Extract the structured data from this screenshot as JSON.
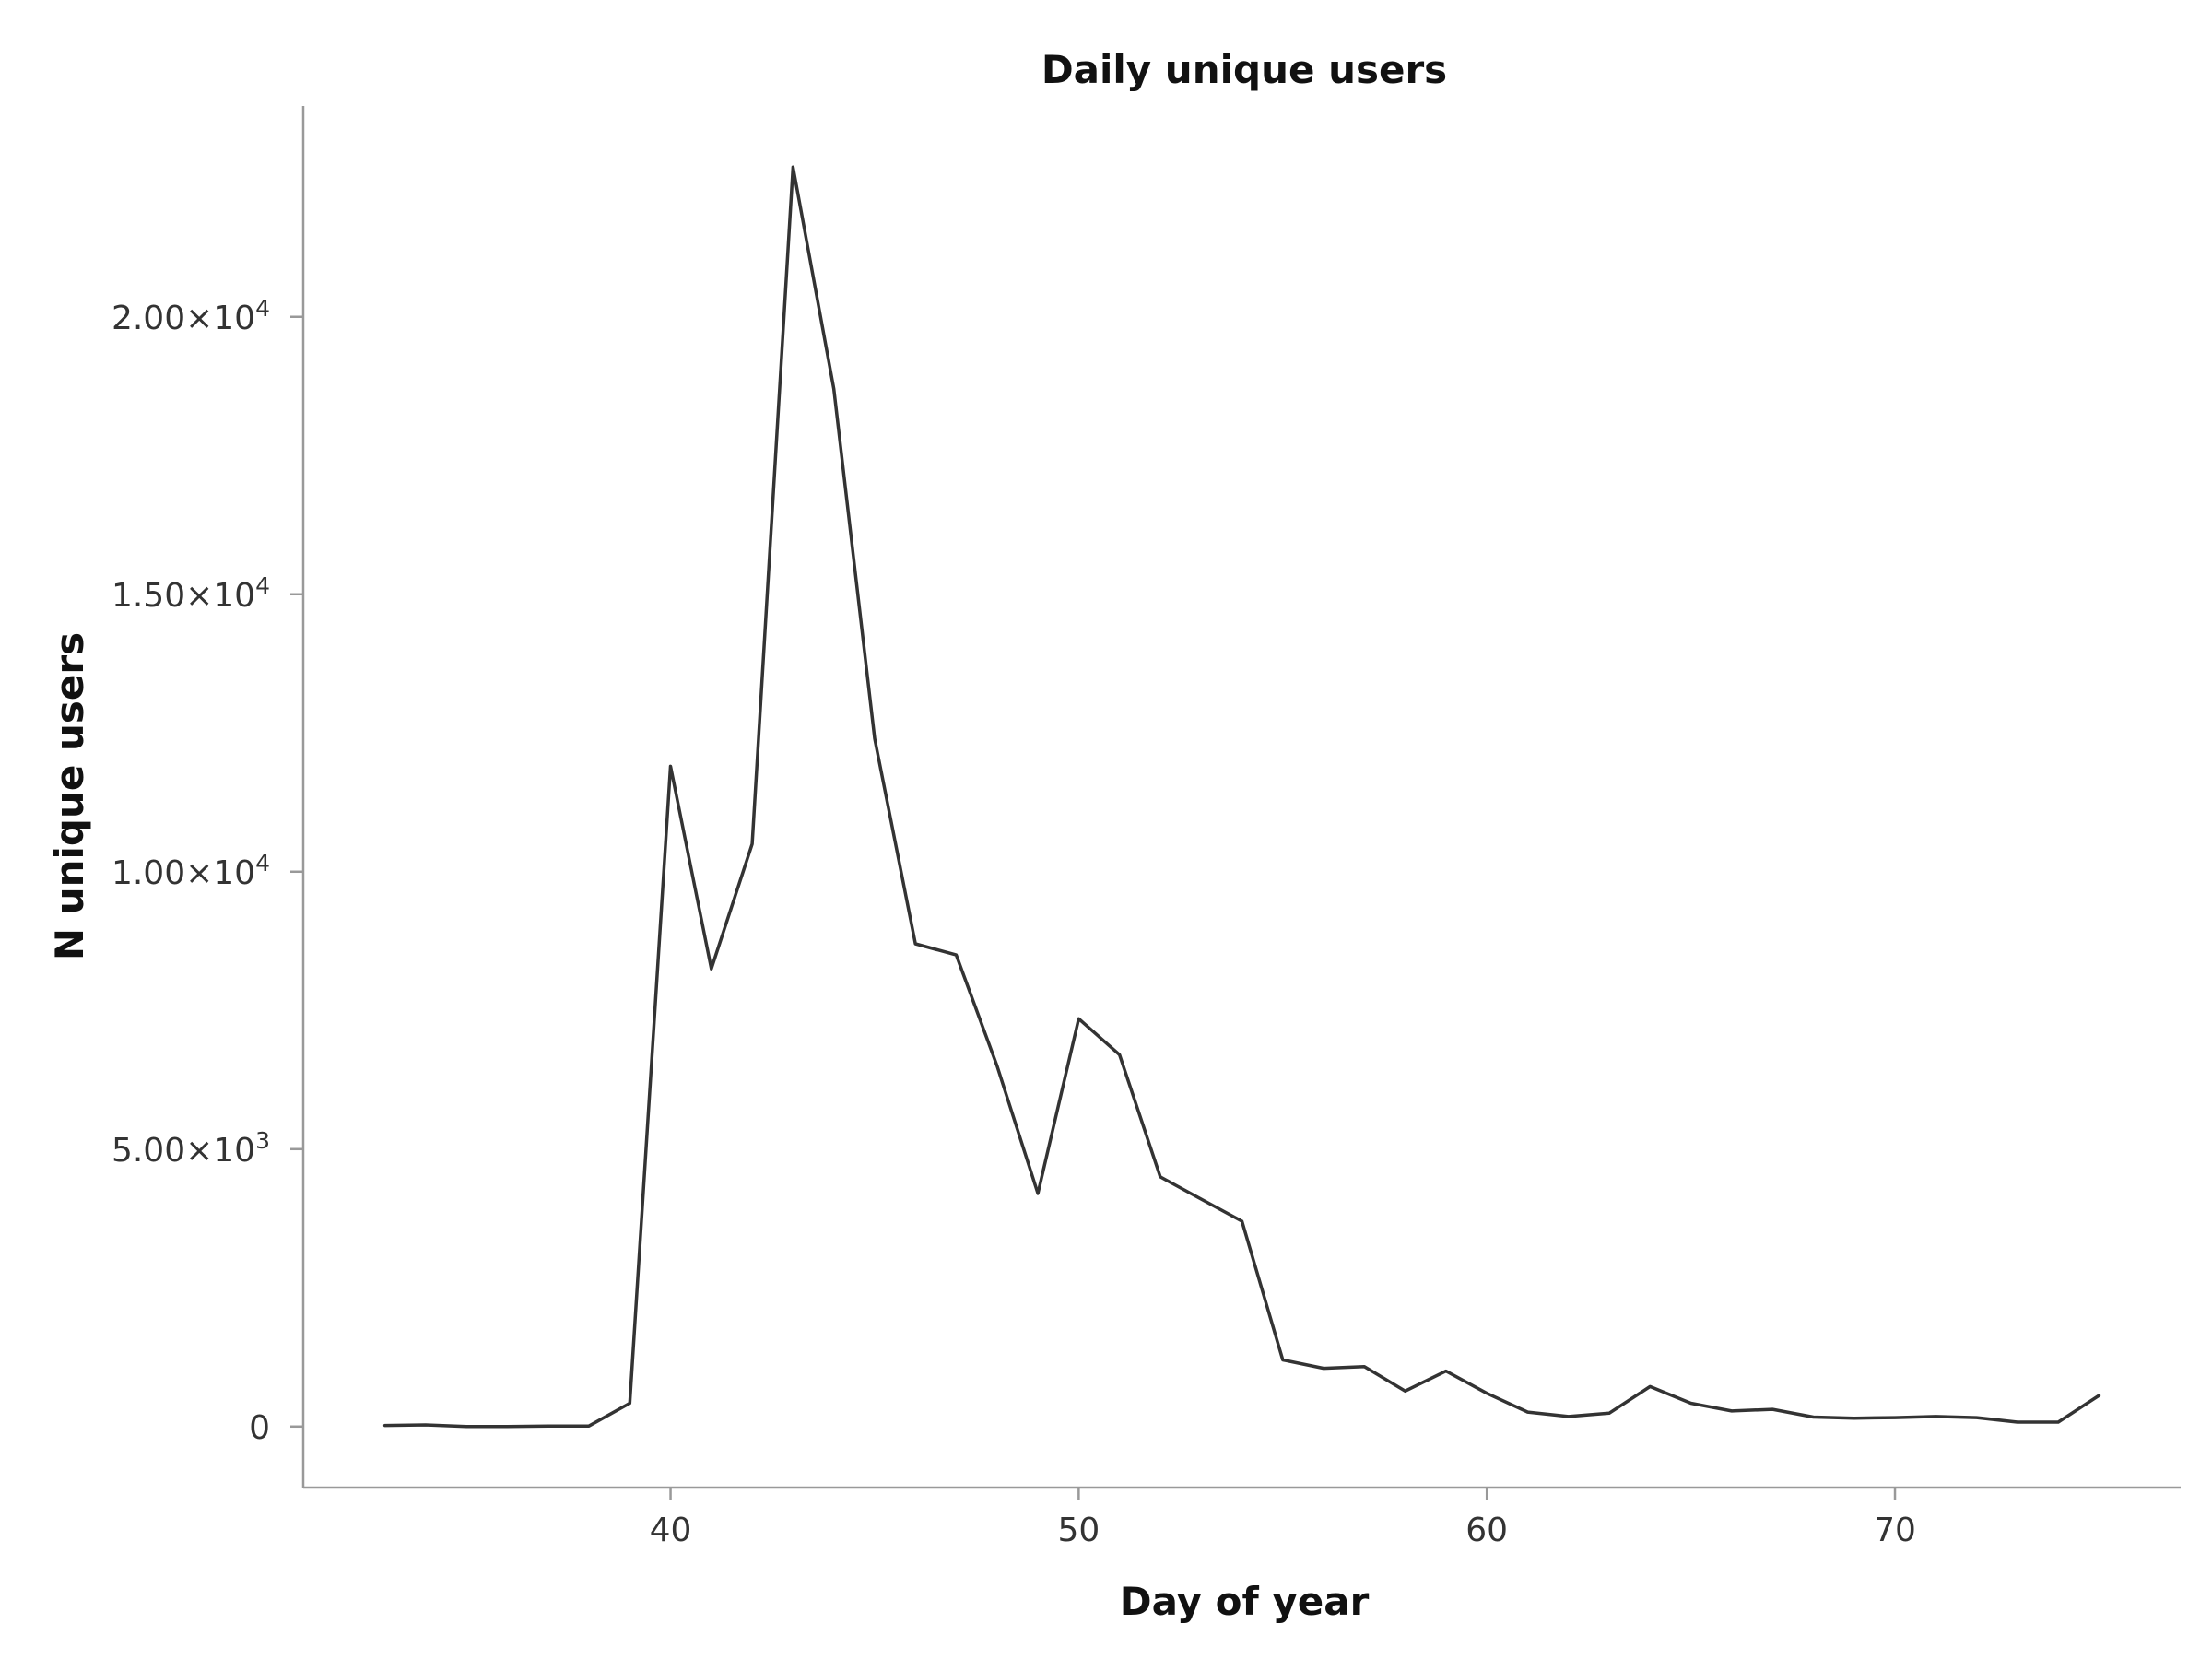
{
  "chart_data": {
    "type": "line",
    "title": "Daily unique users",
    "xlabel": "Day of year",
    "ylabel": "N unique users",
    "xlim": [
      31,
      77
    ],
    "ylim": [
      -1100,
      23800
    ],
    "grid": false,
    "legend": "none",
    "line_color": "#333333",
    "x_ticks": [
      40,
      50,
      60,
      70
    ],
    "x_tick_labels": [
      "40",
      "50",
      "60",
      "70"
    ],
    "y_ticks": [
      0,
      5000,
      10000,
      15000,
      20000
    ],
    "y_tick_labels": [
      {
        "mantissa": "0",
        "exp": ""
      },
      {
        "mantissa": "5.00×10",
        "exp": "3"
      },
      {
        "mantissa": "1.00×10",
        "exp": "4"
      },
      {
        "mantissa": "1.50×10",
        "exp": "4"
      },
      {
        "mantissa": "2.00×10",
        "exp": "4"
      }
    ],
    "series": [
      {
        "x": [
          33,
          34,
          35,
          36,
          37,
          38,
          39,
          40,
          41,
          42,
          43,
          44,
          45,
          46,
          47,
          48,
          49,
          50,
          51,
          52,
          53,
          54,
          55,
          56,
          57,
          58,
          59,
          60,
          61,
          62,
          63,
          64,
          65,
          66,
          67,
          68,
          69,
          70,
          71,
          72,
          73,
          74,
          75
        ],
        "y": [
          20,
          30,
          0,
          0,
          10,
          10,
          420,
          11900,
          8250,
          10500,
          22700,
          18700,
          12400,
          8700,
          8500,
          6500,
          4200,
          7350,
          6700,
          4500,
          4100,
          3700,
          1200,
          1050,
          1080,
          640,
          1000,
          600,
          260,
          180,
          240,
          720,
          420,
          280,
          310,
          170,
          150,
          160,
          180,
          160,
          80,
          80,
          560
        ]
      }
    ]
  }
}
